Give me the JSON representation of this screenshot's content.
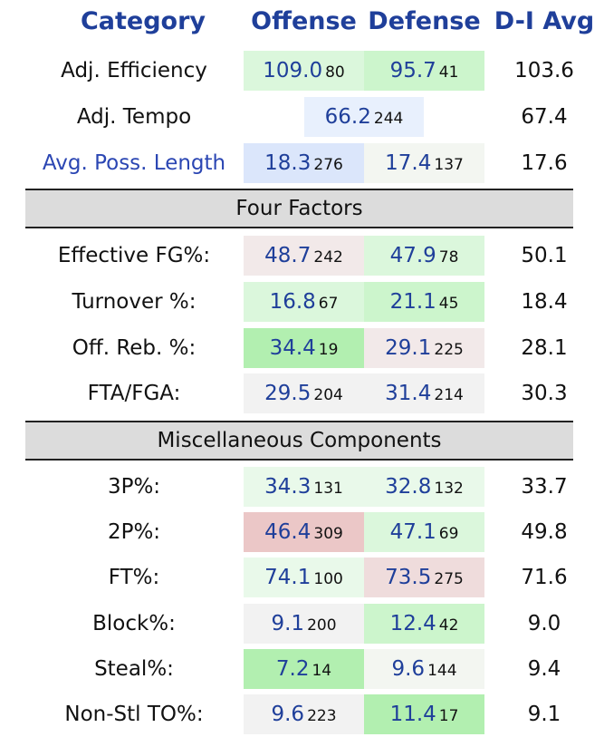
{
  "header": {
    "category": "Category",
    "offense": "Offense",
    "defense": "Defense",
    "avg": "D-I Avg"
  },
  "top_rows": [
    {
      "label": "Adj. Efficiency",
      "off_val": "109.0",
      "off_rank": "80",
      "def_val": "95.7",
      "def_rank": "41",
      "avg": "103.6"
    },
    {
      "label": "Adj. Tempo",
      "tempo_val": "66.2",
      "tempo_rank": "244",
      "avg": "67.4"
    },
    {
      "label": "Avg. Poss. Length",
      "off_val": "18.3",
      "off_rank": "276",
      "def_val": "17.4",
      "def_rank": "137",
      "avg": "17.6"
    }
  ],
  "four_factors": {
    "title": "Four Factors",
    "rows": [
      {
        "label": "Effective FG%:",
        "off_val": "48.7",
        "off_rank": "242",
        "def_val": "47.9",
        "def_rank": "78",
        "avg": "50.1"
      },
      {
        "label": "Turnover %:",
        "off_val": "16.8",
        "off_rank": "67",
        "def_val": "21.1",
        "def_rank": "45",
        "avg": "18.4"
      },
      {
        "label": "Off. Reb. %:",
        "off_val": "34.4",
        "off_rank": "19",
        "def_val": "29.1",
        "def_rank": "225",
        "avg": "28.1"
      },
      {
        "label": "FTA/FGA:",
        "off_val": "29.5",
        "off_rank": "204",
        "def_val": "31.4",
        "def_rank": "214",
        "avg": "30.3"
      }
    ]
  },
  "misc": {
    "title": "Miscellaneous Components",
    "rows": [
      {
        "label": "3P%:",
        "off_val": "34.3",
        "off_rank": "131",
        "def_val": "32.8",
        "def_rank": "132",
        "avg": "33.7"
      },
      {
        "label": "2P%:",
        "off_val": "46.4",
        "off_rank": "309",
        "def_val": "47.1",
        "def_rank": "69",
        "avg": "49.8"
      },
      {
        "label": "FT%:",
        "off_val": "74.1",
        "off_rank": "100",
        "def_val": "73.5",
        "def_rank": "275",
        "avg": "71.6"
      },
      {
        "label": "Block%:",
        "off_val": "9.1",
        "off_rank": "200",
        "def_val": "12.4",
        "def_rank": "42",
        "avg": "9.0"
      },
      {
        "label": "Steal%:",
        "off_val": "7.2",
        "off_rank": "14",
        "def_val": "9.6",
        "def_rank": "144",
        "avg": "9.4"
      },
      {
        "label": "Non-Stl TO%:",
        "off_val": "9.6",
        "off_rank": "223",
        "def_val": "11.4",
        "def_rank": "17",
        "avg": "9.1"
      }
    ]
  },
  "colors": {
    "header_text": "#1f3f9a",
    "value_text": "#1f3f9a",
    "link_text": "#2b46b3",
    "band_bg": "#dcdcdc"
  }
}
